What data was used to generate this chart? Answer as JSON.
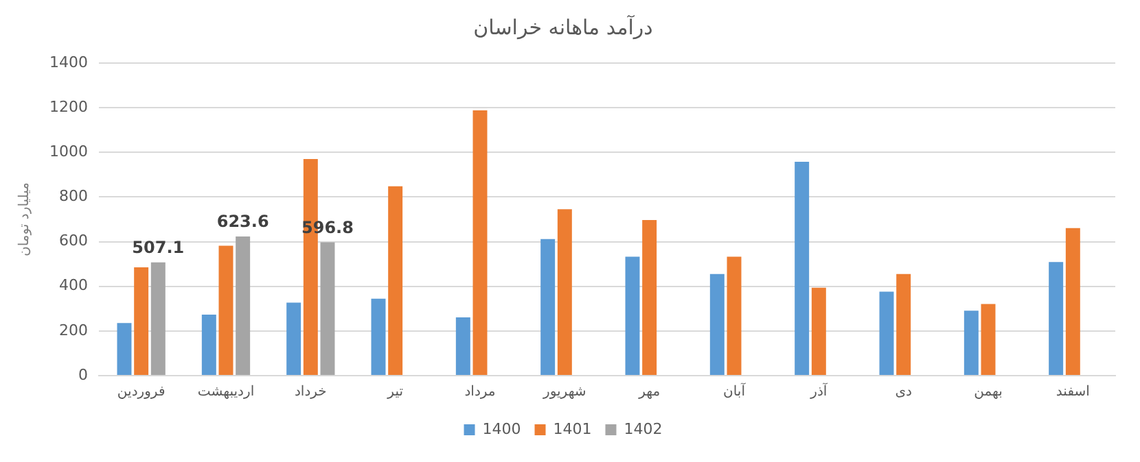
{
  "chart_data": {
    "type": "bar",
    "title": "درآمد ماهانه خراسان",
    "ylabel": "میلیارد تومان",
    "categories": [
      "فروردین",
      "اردیبهشت",
      "خرداد",
      "تیر",
      "مرداد",
      "شهریور",
      "مهر",
      "آبان",
      "آذر",
      "دی",
      "بهمن",
      "اسفند"
    ],
    "series": [
      {
        "name": "1400",
        "color": "#5b9bd5",
        "values": [
          236,
          273,
          327,
          345,
          261,
          612,
          533,
          455,
          958,
          376,
          291,
          509
        ]
      },
      {
        "name": "1401",
        "color": "#ed7d31",
        "values": [
          485,
          582,
          970,
          848,
          1188,
          745,
          697,
          533,
          394,
          455,
          321,
          661
        ]
      },
      {
        "name": "1402",
        "color": "#a5a5a5",
        "values": [
          507.1,
          623.6,
          596.8,
          null,
          null,
          null,
          null,
          null,
          null,
          null,
          null,
          null
        ],
        "value_labels": [
          "507.1",
          "623.6",
          "596.8",
          null,
          null,
          null,
          null,
          null,
          null,
          null,
          null,
          null
        ]
      }
    ],
    "ylim": [
      0,
      1400
    ],
    "yticks": [
      0,
      200,
      400,
      600,
      800,
      1000,
      1200,
      1400
    ],
    "grid": "y",
    "legend": "bottom"
  }
}
